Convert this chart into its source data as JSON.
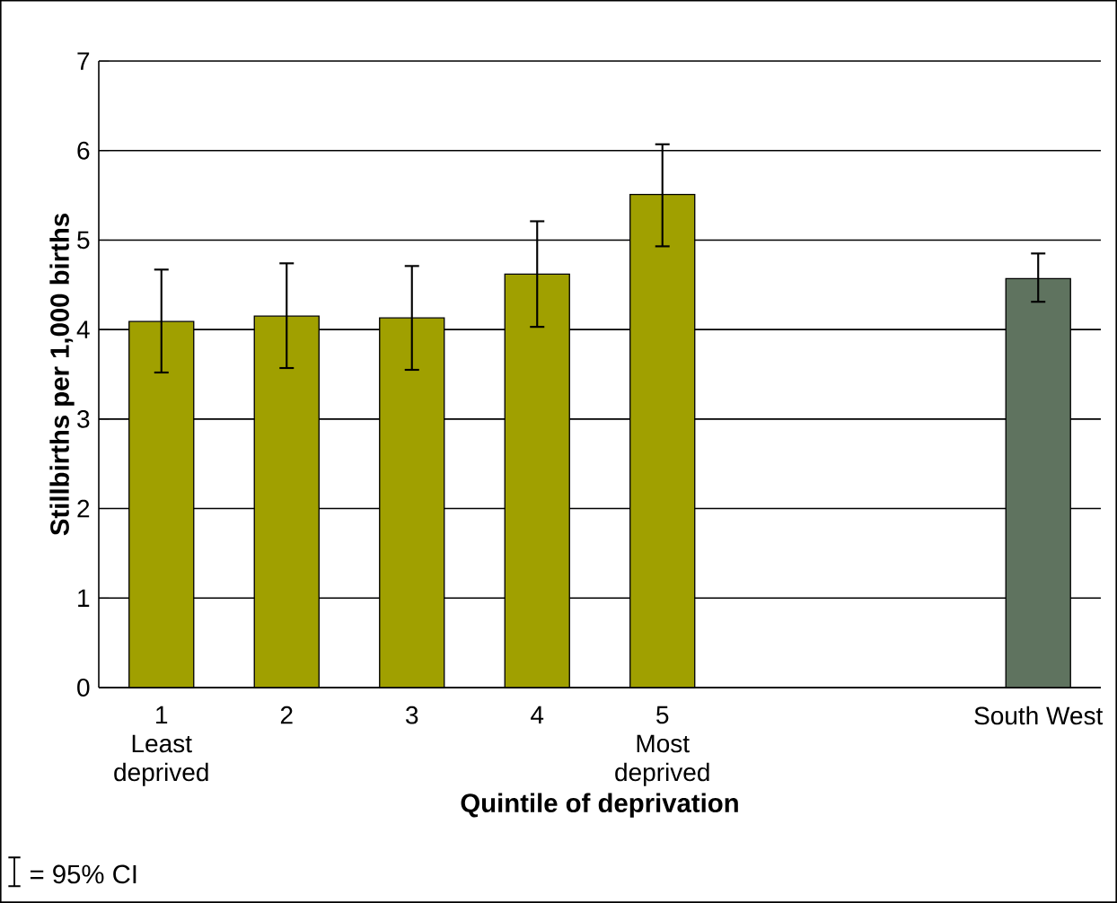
{
  "chart_data": {
    "type": "bar",
    "categories": [
      "1\nLeast\ndeprived",
      "2",
      "3",
      "4",
      "5\nMost\ndeprived",
      null,
      null,
      "South West"
    ],
    "values": [
      4.09,
      4.15,
      4.13,
      4.62,
      5.51,
      null,
      null,
      4.57
    ],
    "errors": [
      [
        3.52,
        4.67
      ],
      [
        3.57,
        4.74
      ],
      [
        3.55,
        4.71
      ],
      [
        4.03,
        5.21
      ],
      [
        4.93,
        6.07
      ],
      null,
      null,
      [
        4.31,
        4.85
      ]
    ],
    "colors": [
      "#a0a000",
      "#a0a000",
      "#a0a000",
      "#a0a000",
      "#a0a000",
      null,
      null,
      "#5f735f"
    ],
    "xlabel": "Quintile of deprivation",
    "ylabel": "Stillbirths per 1,000 births",
    "ylim": [
      0,
      7
    ],
    "yticks": [
      0,
      1,
      2,
      3,
      4,
      5,
      6,
      7
    ],
    "grid": "y",
    "annotations": [
      "= 95% CI"
    ]
  }
}
